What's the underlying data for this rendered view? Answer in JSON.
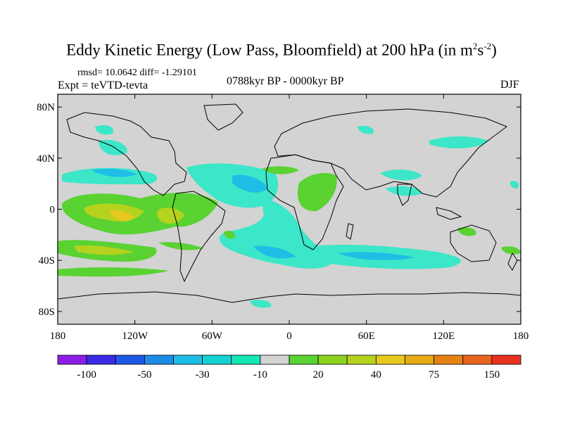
{
  "header": {
    "title": "Eddy Kinetic Energy (Low Pass, Bloomfield) at 200 hPa (in m",
    "title_sup1": "2",
    "title_mid": "s",
    "title_sup2": "-2",
    "title_end": ")",
    "stats": "rmsd= 10.0642 diff= -1.29101",
    "experiment": "Expt = teVTD-tevta",
    "period": "0788kyr BP - 0000kyr BP",
    "season": "DJF"
  },
  "map": {
    "projection": "cylindrical-equidistant",
    "background": "#d3d3d3",
    "lat_ticks": [
      {
        "v": 80,
        "label": "80N"
      },
      {
        "v": 40,
        "label": "40N"
      },
      {
        "v": 0,
        "label": "0"
      },
      {
        "v": -40,
        "label": "40S"
      },
      {
        "v": -80,
        "label": "80S"
      }
    ],
    "lon_ticks": [
      {
        "v": -180,
        "label": "180"
      },
      {
        "v": -120,
        "label": "120W"
      },
      {
        "v": -60,
        "label": "60W"
      },
      {
        "v": 0,
        "label": "0"
      },
      {
        "v": 60,
        "label": "60E"
      },
      {
        "v": 120,
        "label": "120E"
      },
      {
        "v": 180,
        "label": "180"
      }
    ]
  },
  "colorbar": {
    "colors": [
      "#8a1ee6",
      "#3b2be6",
      "#1e5ae6",
      "#1e8ce6",
      "#1ebee6",
      "#14d2d2",
      "#14e6b4",
      "#d3d3d3",
      "#5ad232",
      "#8cd21e",
      "#b4d21e",
      "#e6c81e",
      "#e6aa14",
      "#e68214",
      "#e6641e",
      "#e6321e"
    ],
    "labels": [
      {
        "i": 1,
        "text": "-100"
      },
      {
        "i": 3,
        "text": "-50"
      },
      {
        "i": 5,
        "text": "-30"
      },
      {
        "i": 7,
        "text": "-10"
      },
      {
        "i": 9,
        "text": "20"
      },
      {
        "i": 11,
        "text": "40"
      },
      {
        "i": 13,
        "text": "75"
      },
      {
        "i": 15,
        "text": "150"
      }
    ]
  },
  "field_colors": {
    "cyan_light": "#3ce6c8",
    "cyan": "#1ebee6",
    "teal": "#14d2d2",
    "green": "#5ad232",
    "yellow_green": "#b4d21e",
    "yellow": "#e6c81e"
  }
}
